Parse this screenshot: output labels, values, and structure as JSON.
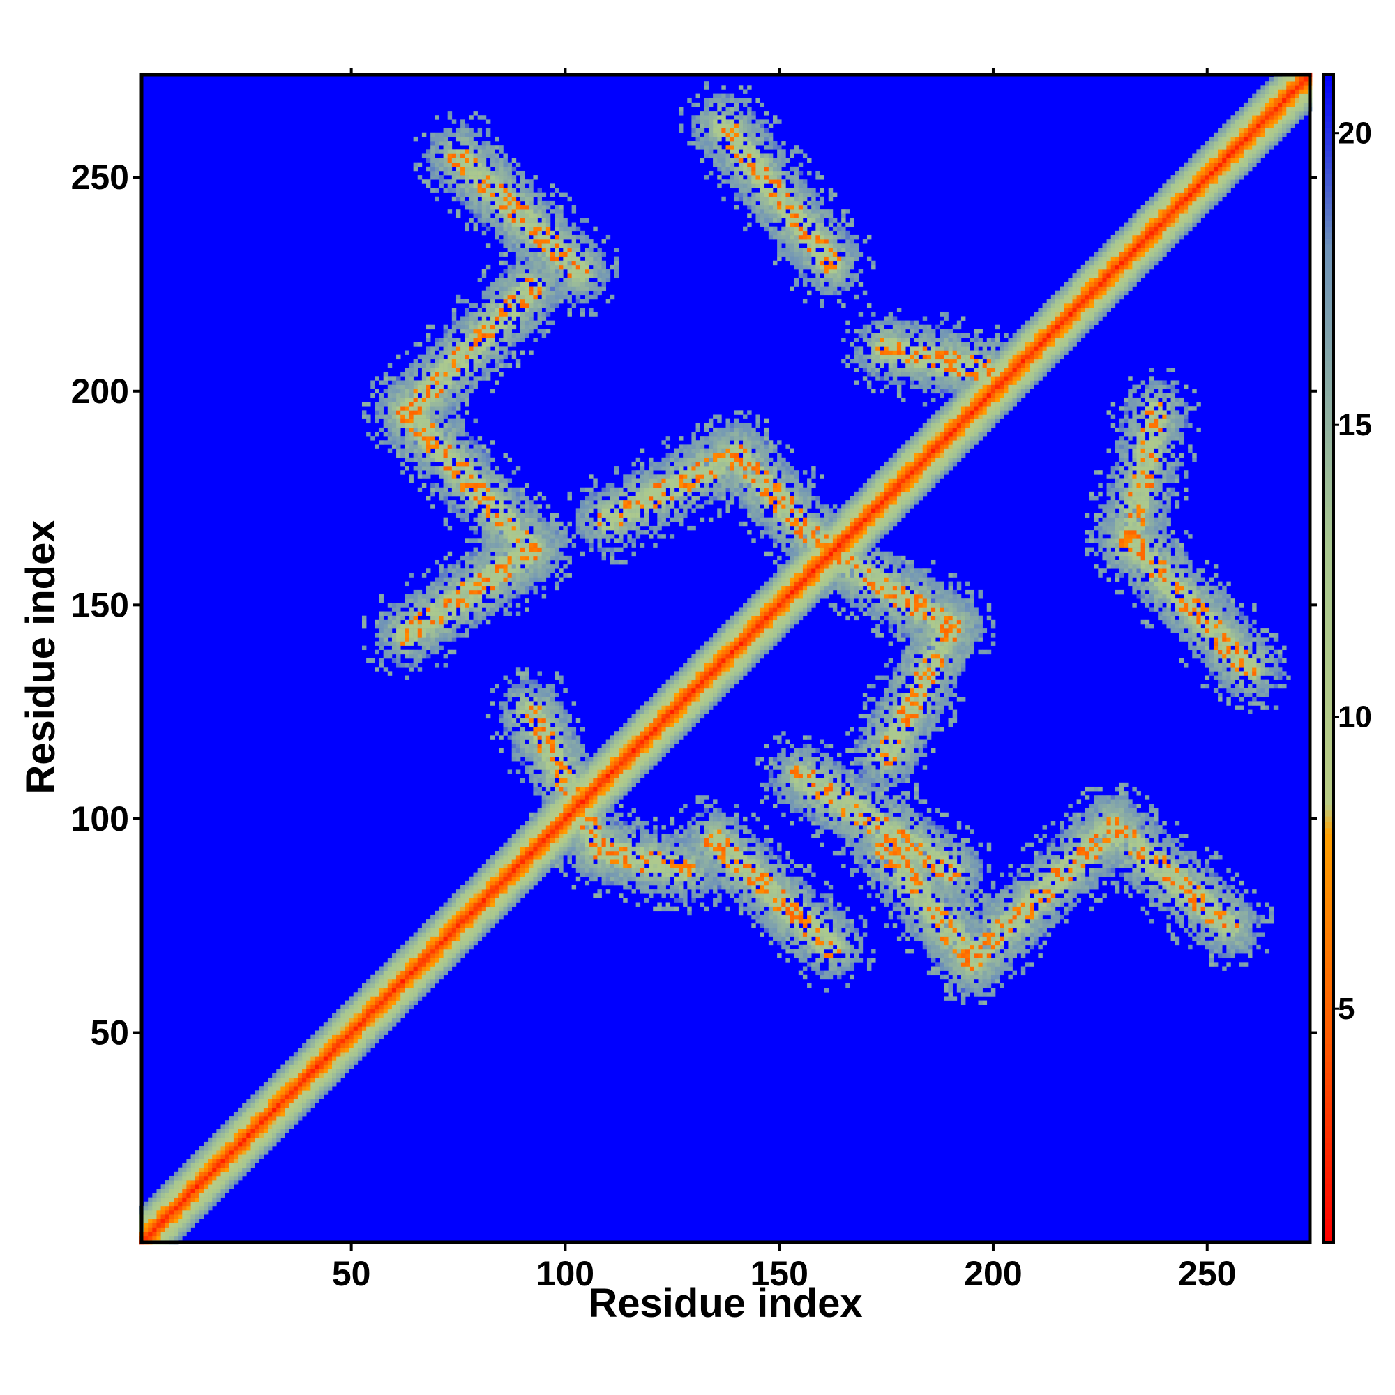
{
  "chart_data": {
    "type": "heatmap",
    "title": "",
    "xlabel": "Residue index",
    "ylabel": "Residue index",
    "xlim": [
      1,
      274
    ],
    "ylim": [
      1,
      274
    ],
    "x_ticks": [
      50,
      100,
      150,
      200,
      250
    ],
    "y_ticks": [
      50,
      100,
      150,
      200,
      250
    ],
    "x_tick_labels": [
      "50",
      "100",
      "150",
      "200",
      "250"
    ],
    "y_tick_labels": [
      "50",
      "100",
      "150",
      "200",
      "250"
    ],
    "colorbar": {
      "range": [
        1,
        21
      ],
      "ticks": [
        5,
        10,
        15,
        20
      ],
      "tick_labels": [
        "5",
        "10",
        "15",
        "20"
      ],
      "stops": [
        {
          "value": 1,
          "color": "#ff0000"
        },
        {
          "value": 4.5,
          "color": "#ff5a00"
        },
        {
          "value": 8.0,
          "color": "#ffa000"
        },
        {
          "value": 8.5,
          "color": "#b9cc85"
        },
        {
          "value": 13,
          "color": "#a9c890"
        },
        {
          "value": 18,
          "color": "#6f93b8"
        },
        {
          "value": 21,
          "color": "#0000ff"
        }
      ]
    },
    "background_value": 21,
    "background_color": "#0000ff",
    "grid": false,
    "legend": "colorbar-right",
    "note_structure": {
      "diagonal_band": {
        "from": [
          1,
          1
        ],
        "to": [
          274,
          274
        ],
        "core_value": 2,
        "halfwidth": 6
      },
      "off_diagonal_bands": [
        {
          "from": [
            63,
            195
          ],
          "to": [
            92,
            224
          ]
        },
        {
          "from": [
            75,
            255
          ],
          "to": [
            103,
            228
          ]
        },
        {
          "from": [
            63,
            195
          ],
          "to": [
            92,
            163
          ]
        },
        {
          "from": [
            92,
            163
          ],
          "to": [
            63,
            143
          ]
        },
        {
          "from": [
            92,
            125
          ],
          "to": [
            108,
            93
          ]
        },
        {
          "from": [
            108,
            93
          ],
          "to": [
            128,
            88
          ]
        },
        {
          "from": [
            110,
            170
          ],
          "to": [
            140,
            185
          ]
        },
        {
          "from": [
            140,
            185
          ],
          "to": [
            162,
            162
          ]
        },
        {
          "from": [
            137,
            262
          ],
          "to": [
            162,
            230
          ]
        },
        {
          "from": [
            162,
            162
          ],
          "to": [
            190,
            145
          ]
        },
        {
          "from": [
            190,
            145
          ],
          "to": [
            175,
            115
          ]
        },
        {
          "from": [
            135,
            95
          ],
          "to": [
            162,
            70
          ]
        },
        {
          "from": [
            155,
            110
          ],
          "to": [
            190,
            88
          ]
        },
        {
          "from": [
            175,
            93
          ],
          "to": [
            195,
            67
          ]
        },
        {
          "from": [
            195,
            67
          ],
          "to": [
            228,
            98
          ]
        },
        {
          "from": [
            228,
            98
          ],
          "to": [
            255,
            75
          ]
        },
        {
          "from": [
            175,
            210
          ],
          "to": [
            198,
            205
          ]
        },
        {
          "from": [
            238,
            195
          ],
          "to": [
            232,
            165
          ]
        },
        {
          "from": [
            232,
            165
          ],
          "to": [
            260,
            135
          ]
        }
      ]
    }
  }
}
